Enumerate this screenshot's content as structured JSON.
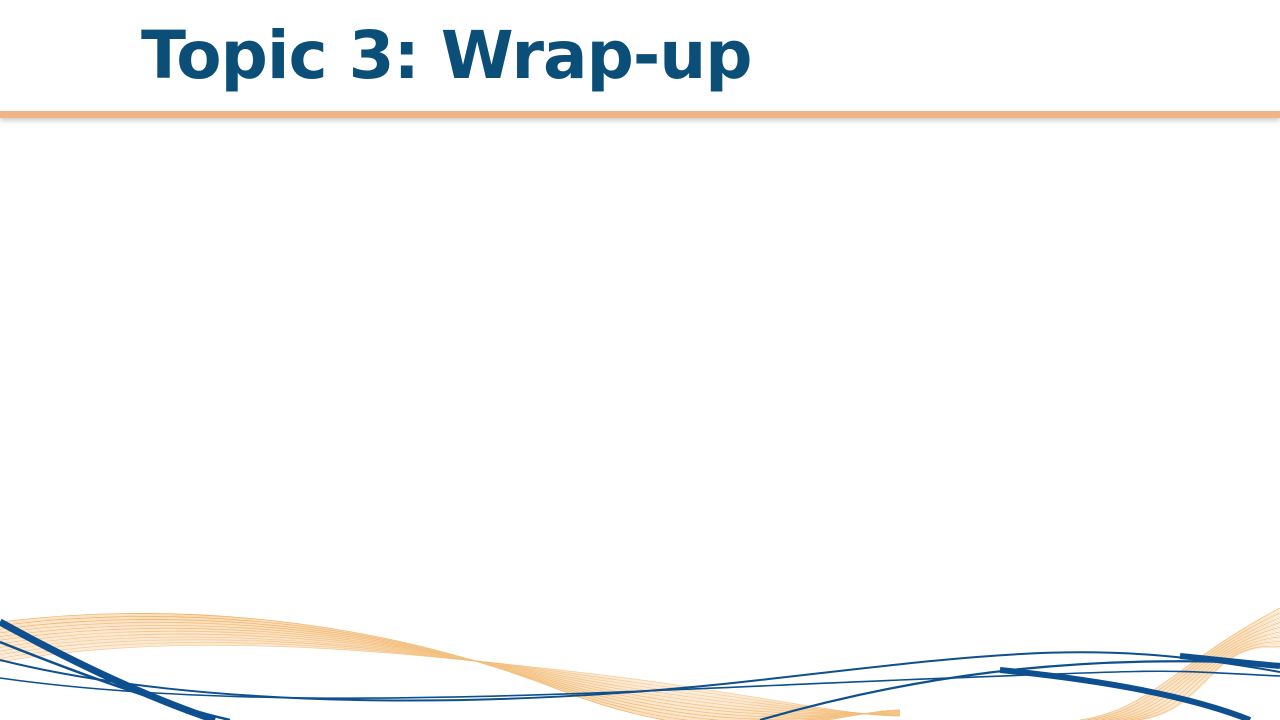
{
  "slide": {
    "title": "Topic 3: Wrap-up"
  },
  "colors": {
    "title": "#0b4f79",
    "rule": "#f0b485",
    "wave_blue": "#0d4f8f",
    "wave_orange": "#f0a040",
    "wave_orange_light": "#f6d2a4"
  }
}
